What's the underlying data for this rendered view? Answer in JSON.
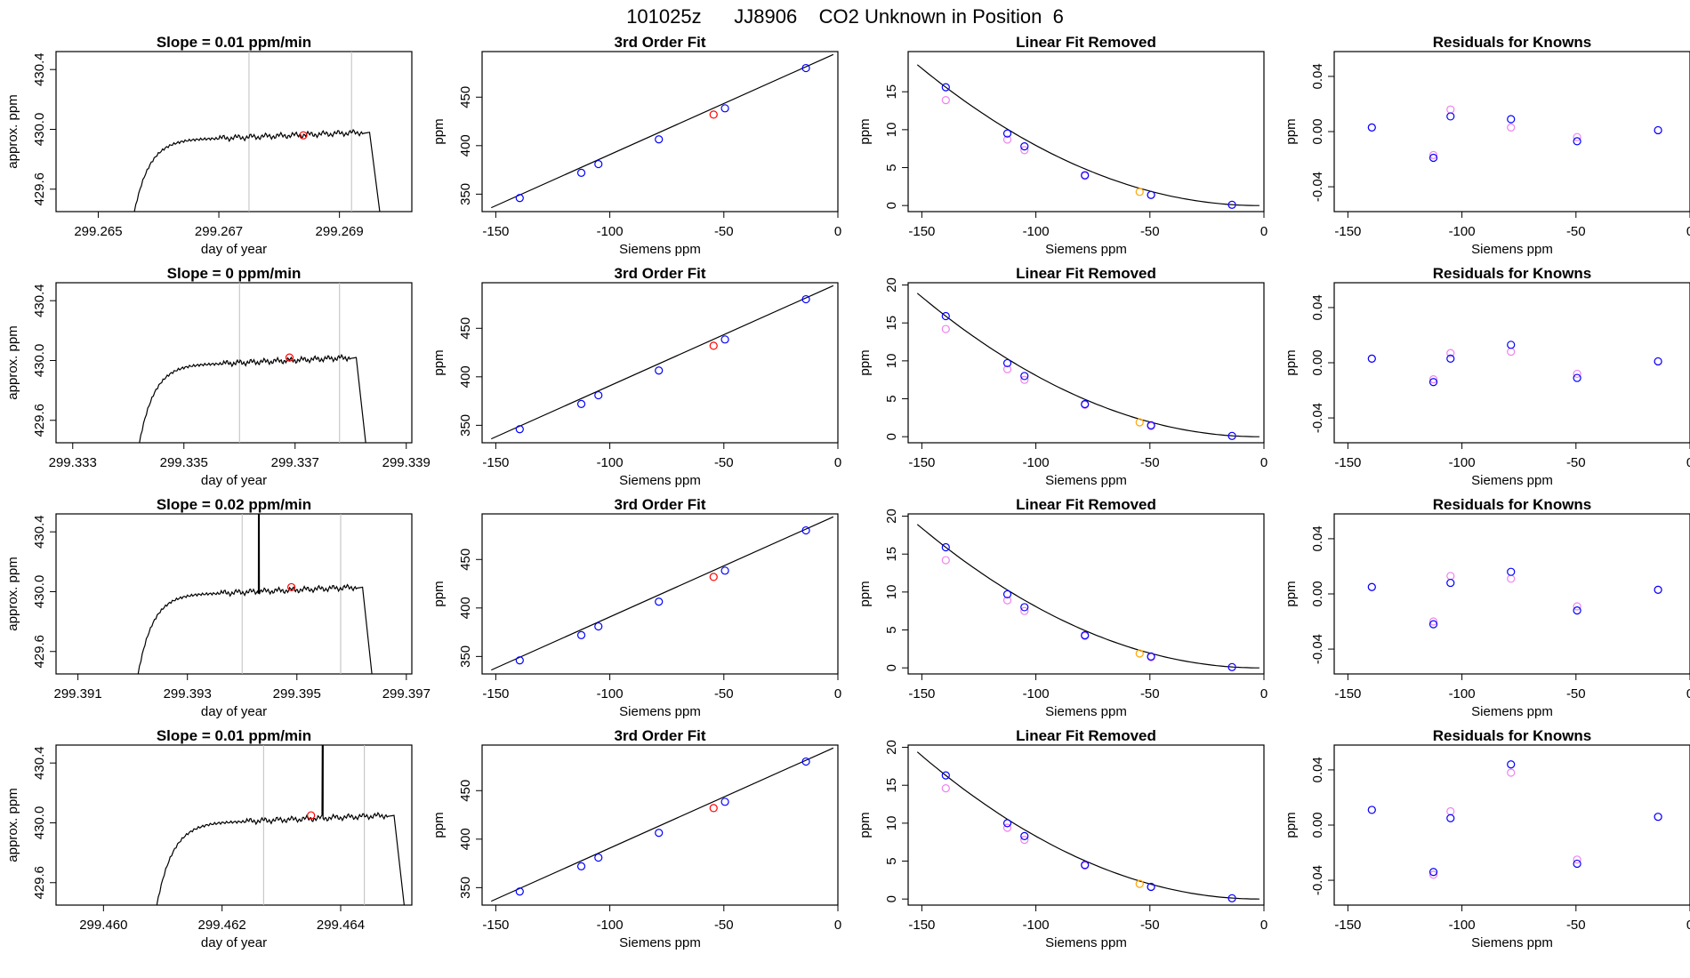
{
  "figure_title": "101025z      JJ8906    CO2 Unknown in Position  6",
  "colors": {
    "axis": "#000000",
    "line": "#000000",
    "vline": "#bebebe",
    "unknown_point": "#ff0000",
    "fit_point": "#ffa500",
    "known_point": "#0000ff",
    "known_point_alt": "#ee82ee"
  },
  "chart_data": [
    {
      "type": "line",
      "title": "Slope =  0.01  ppm/min",
      "xlabel": "day of year",
      "ylabel": "approx. ppm",
      "xlim": [
        299.2643,
        299.2702
      ],
      "ylim": [
        429.45,
        430.52
      ],
      "xticks": [
        "299.265",
        "299.267",
        "299.269"
      ],
      "yticks": [
        "429.6",
        "430.0",
        "430.4"
      ],
      "vlines": [
        299.2675,
        299.2692
      ],
      "rise_x": [
        299.2656,
        299.266,
        299.2665,
        299.267
      ],
      "plateau_x": [
        299.267,
        299.2694
      ],
      "drop_x": [
        299.2695,
        299.2697
      ],
      "plateau_level": 429.97,
      "rise_start": 429.45,
      "unknown_point": {
        "x": 299.2684,
        "y": 429.96
      }
    },
    {
      "type": "line",
      "title": "Slope =  0  ppm/min",
      "xlabel": "day of year",
      "ylabel": "approx. ppm",
      "xlim": [
        299.3327,
        299.3391
      ],
      "ylim": [
        429.45,
        430.52
      ],
      "xticks": [
        "299.333",
        "299.335",
        "299.337",
        "299.339"
      ],
      "yticks": [
        "429.6",
        "430.0",
        "430.4"
      ],
      "vlines": [
        299.336,
        299.3378
      ],
      "rise_x": [
        299.3342,
        299.3346,
        299.3351,
        299.3357
      ],
      "plateau_x": [
        299.3357,
        299.338
      ],
      "drop_x": [
        299.3381,
        299.3383
      ],
      "plateau_level": 430.01,
      "rise_start": 429.45,
      "unknown_point": {
        "x": 299.3369,
        "y": 430.02
      }
    },
    {
      "type": "line",
      "title": "Slope =  0.02  ppm/min",
      "xlabel": "day of year",
      "ylabel": "approx. ppm",
      "xlim": [
        299.3906,
        299.3971
      ],
      "ylim": [
        429.45,
        430.52
      ],
      "xticks": [
        "299.391",
        "299.393",
        "299.395",
        "299.397"
      ],
      "yticks": [
        "429.6",
        "430.0",
        "430.4"
      ],
      "vlines": [
        299.394,
        299.3958
      ],
      "rise_x": [
        299.3921,
        299.3925,
        299.393,
        299.3936
      ],
      "plateau_x": [
        299.3936,
        299.3961
      ],
      "drop_x": [
        299.3962,
        299.3964
      ],
      "plateau_level": 430.02,
      "rise_start": 429.45,
      "spike_x": 299.3943,
      "unknown_point": {
        "x": 299.3949,
        "y": 430.03
      }
    },
    {
      "type": "line",
      "title": "Slope =  0.01  ppm/min",
      "xlabel": "day of year",
      "ylabel": "approx. ppm",
      "xlim": [
        299.4592,
        299.4652
      ],
      "ylim": [
        429.45,
        430.52
      ],
      "xticks": [
        "299.460",
        "299.462",
        "299.464"
      ],
      "yticks": [
        "429.6",
        "430.0",
        "430.4"
      ],
      "vlines": [
        299.4627,
        299.4644
      ],
      "rise_x": [
        299.4609,
        299.4613,
        299.4618,
        299.4624
      ],
      "plateau_x": [
        299.4624,
        299.4648
      ],
      "drop_x": [
        299.4649,
        299.4651
      ],
      "plateau_level": 430.04,
      "rise_start": 429.45,
      "spike_x": 299.4637,
      "unknown_point": {
        "x": 299.4635,
        "y": 430.05
      }
    },
    {
      "type": "scatter",
      "title": "3rd Order Fit",
      "xlabel": "Siemens ppm",
      "ylabel": "ppm",
      "xlim": [
        -156,
        0
      ],
      "ylim": [
        332,
        497
      ],
      "xticks": [
        -150,
        -100,
        -50,
        0
      ],
      "yticks": [
        350,
        400,
        450
      ],
      "knowns_x": [
        -139.5,
        -112.5,
        -105,
        -78.5,
        -49.5,
        -14
      ],
      "knowns_y": [
        346,
        372,
        381,
        406.5,
        438.5,
        480
      ],
      "unknown": {
        "x": -54.5,
        "y": 432
      },
      "fit_line": [
        [
          -152,
          336
        ],
        [
          -2,
          494
        ]
      ]
    },
    {
      "type": "scatter",
      "title": "Linear Fit Removed",
      "xlabel": "Siemens ppm",
      "ylabel": "ppm",
      "xlim": [
        -156,
        0
      ],
      "ylim": [
        -0.8,
        20.3
      ],
      "xticks": [
        -150,
        -100,
        -50,
        0
      ],
      "yticks": [
        0,
        5,
        10,
        15
      ],
      "knowns_x": [
        -139.5,
        -112.5,
        -105,
        -78.5,
        -49.5,
        -14
      ],
      "knowns_y": [
        15.6,
        9.5,
        7.8,
        4.0,
        1.4,
        0.1
      ],
      "knowns_alt_y": [
        13.9,
        8.7,
        7.3,
        3.9,
        1.4,
        0.1
      ],
      "unknown": {
        "x": -54.5,
        "y": 1.8
      },
      "curve_range": [
        -152,
        -2
      ]
    },
    {
      "type": "scatter",
      "title": "Residuals for Knowns",
      "xlabel": "Siemens ppm",
      "ylabel": "ppm",
      "xlim": [
        -156,
        0
      ],
      "ylim": [
        -0.058,
        0.058
      ],
      "xticks": [
        -150,
        -100,
        -50,
        0
      ],
      "yticks": [
        -0.04,
        0.0,
        0.04
      ],
      "ytick_labels": [
        "-0.04",
        "0.00",
        "0.04"
      ],
      "knowns_x": [
        -139.5,
        -112.5,
        -105,
        -78.5,
        -49.5,
        -14
      ],
      "knowns_y": [
        0.003,
        -0.019,
        0.011,
        0.009,
        -0.007,
        0.001
      ],
      "knowns_alt_y": [
        0.003,
        -0.017,
        0.016,
        0.003,
        -0.004,
        0.001
      ]
    },
    {
      "type": "scatter",
      "title": "3rd Order Fit",
      "xlabel": "Siemens ppm",
      "ylabel": "ppm",
      "xlim": [
        -156,
        0
      ],
      "ylim": [
        332,
        497
      ],
      "xticks": [
        -150,
        -100,
        -50,
        0
      ],
      "yticks": [
        350,
        400,
        450
      ],
      "knowns_x": [
        -139.5,
        -112.5,
        -105,
        -78.5,
        -49.5,
        -14
      ],
      "knowns_y": [
        346,
        372,
        381,
        406.5,
        438.5,
        480
      ],
      "unknown": {
        "x": -54.5,
        "y": 432
      },
      "fit_line": [
        [
          -152,
          336
        ],
        [
          -2,
          494
        ]
      ]
    },
    {
      "type": "scatter",
      "title": "Linear Fit Removed",
      "xlabel": "Siemens ppm",
      "ylabel": "ppm",
      "xlim": [
        -156,
        0
      ],
      "ylim": [
        -0.8,
        20.3
      ],
      "xticks": [
        -150,
        -100,
        -50,
        0
      ],
      "yticks": [
        0,
        5,
        10,
        15,
        20
      ],
      "knowns_x": [
        -139.5,
        -112.5,
        -105,
        -78.5,
        -49.5,
        -14
      ],
      "knowns_y": [
        15.9,
        9.7,
        8.0,
        4.3,
        1.5,
        0.1
      ],
      "knowns_alt_y": [
        14.2,
        8.9,
        7.5,
        4.2,
        1.4,
        0.1
      ],
      "unknown": {
        "x": -54.5,
        "y": 1.9
      },
      "curve_range": [
        -152,
        -2
      ]
    },
    {
      "type": "scatter",
      "title": "Residuals for Knowns",
      "xlabel": "Siemens ppm",
      "ylabel": "ppm",
      "xlim": [
        -156,
        0
      ],
      "ylim": [
        -0.058,
        0.058
      ],
      "xticks": [
        -150,
        -100,
        -50,
        0
      ],
      "yticks": [
        -0.04,
        0.0,
        0.04
      ],
      "ytick_labels": [
        "-0.04",
        "0.00",
        "0.04"
      ],
      "knowns_x": [
        -139.5,
        -112.5,
        -105,
        -78.5,
        -49.5,
        -14
      ],
      "knowns_y": [
        0.003,
        -0.014,
        0.003,
        0.013,
        -0.011,
        0.001
      ],
      "knowns_alt_y": [
        0.003,
        -0.012,
        0.007,
        0.008,
        -0.008,
        0.001
      ]
    },
    {
      "type": "scatter",
      "title": "3rd Order Fit",
      "xlabel": "Siemens ppm",
      "ylabel": "ppm",
      "xlim": [
        -156,
        0
      ],
      "ylim": [
        332,
        497
      ],
      "xticks": [
        -150,
        -100,
        -50,
        0
      ],
      "yticks": [
        350,
        400,
        450
      ],
      "knowns_x": [
        -139.5,
        -112.5,
        -105,
        -78.5,
        -49.5,
        -14
      ],
      "knowns_y": [
        346,
        372,
        381,
        406.5,
        438.5,
        480
      ],
      "unknown": {
        "x": -54.5,
        "y": 432
      },
      "fit_line": [
        [
          -152,
          336
        ],
        [
          -2,
          494
        ]
      ]
    },
    {
      "type": "scatter",
      "title": "Linear Fit Removed",
      "xlabel": "Siemens ppm",
      "ylabel": "ppm",
      "xlim": [
        -156,
        0
      ],
      "ylim": [
        -0.8,
        20.3
      ],
      "xticks": [
        -150,
        -100,
        -50,
        0
      ],
      "yticks": [
        0,
        5,
        10,
        15,
        20
      ],
      "knowns_x": [
        -139.5,
        -112.5,
        -105,
        -78.5,
        -49.5,
        -14
      ],
      "knowns_y": [
        15.9,
        9.7,
        8.0,
        4.3,
        1.5,
        0.1
      ],
      "knowns_alt_y": [
        14.2,
        8.9,
        7.5,
        4.2,
        1.4,
        0.1
      ],
      "unknown": {
        "x": -54.5,
        "y": 1.9
      },
      "curve_range": [
        -152,
        -2
      ]
    },
    {
      "type": "scatter",
      "title": "Residuals for Knowns",
      "xlabel": "Siemens ppm",
      "ylabel": "ppm",
      "xlim": [
        -156,
        0
      ],
      "ylim": [
        -0.058,
        0.058
      ],
      "xticks": [
        -150,
        -100,
        -50,
        0
      ],
      "yticks": [
        -0.04,
        0.0,
        0.04
      ],
      "ytick_labels": [
        "-0.04",
        "0.00",
        "0.04"
      ],
      "knowns_x": [
        -139.5,
        -112.5,
        -105,
        -78.5,
        -49.5,
        -14
      ],
      "knowns_y": [
        0.005,
        -0.022,
        0.008,
        0.016,
        -0.012,
        0.003
      ],
      "knowns_alt_y": [
        0.005,
        -0.02,
        0.013,
        0.011,
        -0.009,
        0.003
      ]
    },
    {
      "type": "scatter",
      "title": "3rd Order Fit",
      "xlabel": "Siemens ppm",
      "ylabel": "ppm",
      "xlim": [
        -156,
        0
      ],
      "ylim": [
        332,
        497
      ],
      "xticks": [
        -150,
        -100,
        -50,
        0
      ],
      "yticks": [
        350,
        400,
        450
      ],
      "knowns_x": [
        -139.5,
        -112.5,
        -105,
        -78.5,
        -49.5,
        -14
      ],
      "knowns_y": [
        346,
        372,
        381,
        406.5,
        438.5,
        480
      ],
      "unknown": {
        "x": -54.5,
        "y": 432
      },
      "fit_line": [
        [
          -152,
          336
        ],
        [
          -2,
          494
        ]
      ]
    },
    {
      "type": "scatter",
      "title": "Linear Fit Removed",
      "xlabel": "Siemens ppm",
      "ylabel": "ppm",
      "xlim": [
        -156,
        0
      ],
      "ylim": [
        -0.8,
        20.3
      ],
      "xticks": [
        -150,
        -100,
        -50,
        0
      ],
      "yticks": [
        0,
        5,
        10,
        15,
        20
      ],
      "knowns_x": [
        -139.5,
        -112.5,
        -105,
        -78.5,
        -49.5,
        -14
      ],
      "knowns_y": [
        16.3,
        10.0,
        8.3,
        4.5,
        1.6,
        0.1
      ],
      "knowns_alt_y": [
        14.6,
        9.4,
        7.8,
        4.4,
        1.6,
        0.1
      ],
      "unknown": {
        "x": -54.5,
        "y": 2.0
      },
      "curve_range": [
        -152,
        -2
      ]
    },
    {
      "type": "scatter",
      "title": "Residuals for Knowns",
      "xlabel": "Siemens ppm",
      "ylabel": "ppm",
      "xlim": [
        -156,
        0
      ],
      "ylim": [
        -0.058,
        0.058
      ],
      "xticks": [
        -150,
        -100,
        -50,
        0
      ],
      "yticks": [
        -0.04,
        0.0,
        0.04
      ],
      "ytick_labels": [
        "-0.04",
        "0.00",
        "0.04"
      ],
      "knowns_x": [
        -139.5,
        -112.5,
        -105,
        -78.5,
        -49.5,
        -14
      ],
      "knowns_y": [
        0.011,
        -0.034,
        0.005,
        0.044,
        -0.028,
        0.006
      ],
      "knowns_alt_y": [
        0.011,
        -0.036,
        0.01,
        0.038,
        -0.025,
        0.006
      ]
    }
  ]
}
